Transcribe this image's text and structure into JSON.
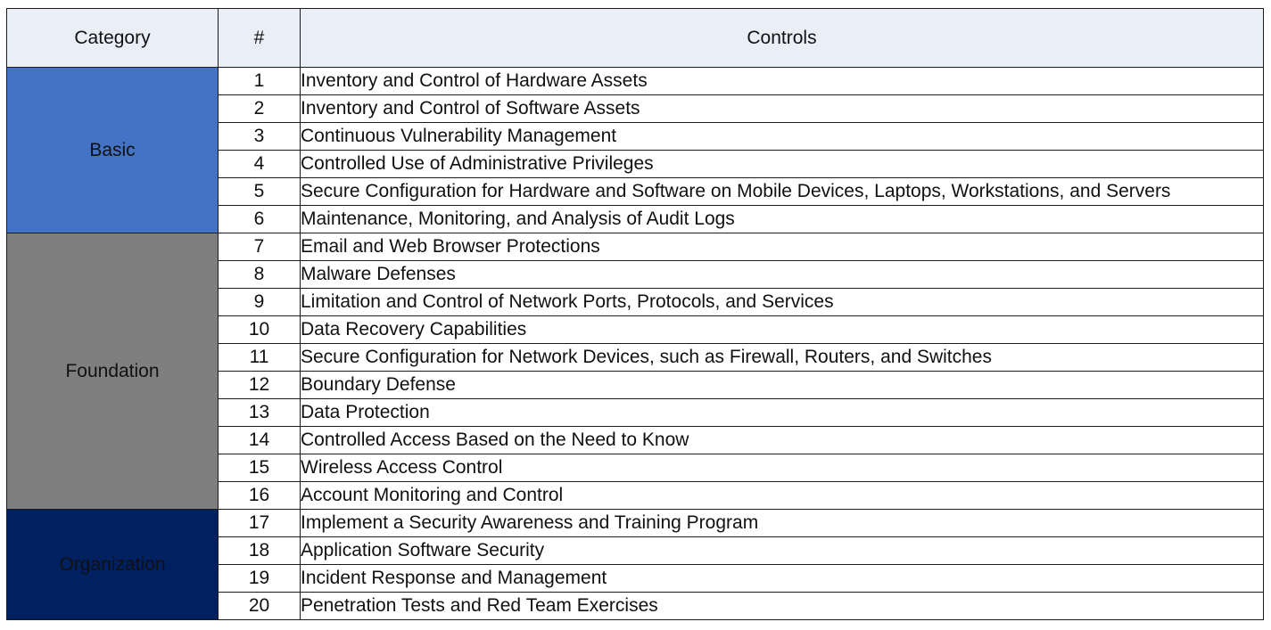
{
  "headers": {
    "category": "Category",
    "number": "#",
    "controls": "Controls"
  },
  "categories": [
    {
      "name": "Basic",
      "color": "#4472c4"
    },
    {
      "name": "Foundation",
      "color": "#7f7f7f"
    },
    {
      "name": "Organization",
      "color": "#002060"
    }
  ],
  "rows": [
    {
      "num": "1",
      "control": "Inventory and Control of Hardware Assets"
    },
    {
      "num": "2",
      "control": "Inventory and Control of Software Assets"
    },
    {
      "num": "3",
      "control": "Continuous Vulnerability Management"
    },
    {
      "num": "4",
      "control": "Controlled Use of Administrative Privileges"
    },
    {
      "num": "5",
      "control": "Secure Configuration for Hardware and Software on Mobile Devices, Laptops, Workstations, and Servers"
    },
    {
      "num": "6",
      "control": "Maintenance, Monitoring, and Analysis of Audit Logs"
    },
    {
      "num": "7",
      "control": "Email and Web Browser Protections"
    },
    {
      "num": "8",
      "control": "Malware Defenses"
    },
    {
      "num": "9",
      "control": "Limitation and Control of Network Ports, Protocols, and Services"
    },
    {
      "num": "10",
      "control": "Data Recovery Capabilities"
    },
    {
      "num": "11",
      "control": "Secure Configuration for Network Devices, such as Firewall, Routers, and Switches"
    },
    {
      "num": "12",
      "control": "Boundary Defense"
    },
    {
      "num": "13",
      "control": "Data Protection"
    },
    {
      "num": "14",
      "control": "Controlled Access Based on the Need to Know"
    },
    {
      "num": "15",
      "control": "Wireless Access Control"
    },
    {
      "num": "16",
      "control": "Account Monitoring and Control"
    },
    {
      "num": "17",
      "control": "Implement a Security Awareness and Training Program"
    },
    {
      "num": "18",
      "control": "Application Software Security"
    },
    {
      "num": "19",
      "control": "Incident Response and Management"
    },
    {
      "num": "20",
      "control": "Penetration Tests and Red Team Exercises"
    }
  ]
}
